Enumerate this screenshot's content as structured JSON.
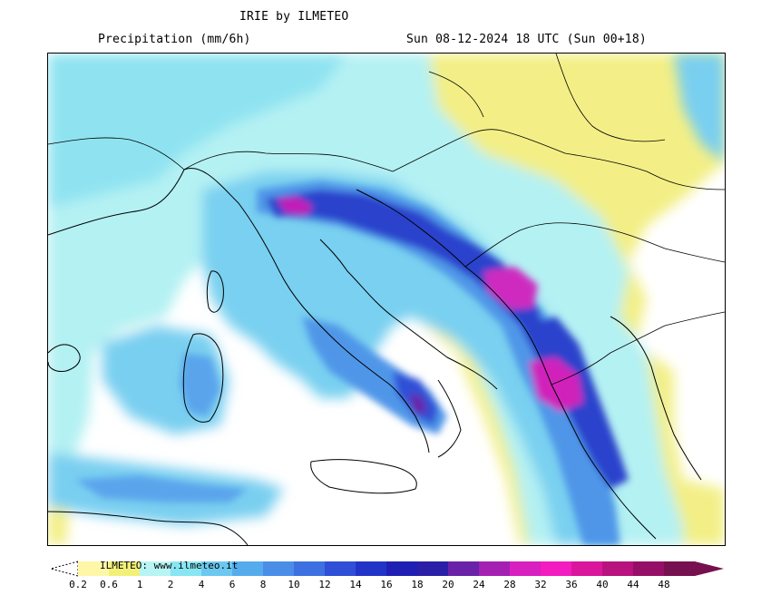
{
  "header": {
    "title": "IRIE by ILMETEO",
    "subtitle": "Precipitation (mm/6h)",
    "valid_time": "Sun 08-12-2024 18 UTC (Sun 00+18)"
  },
  "legend": {
    "credit": "ILMETEO: www.ilmeteo.it",
    "levels": [
      "0.2",
      "0.6",
      "1",
      "2",
      "4",
      "6",
      "8",
      "10",
      "12",
      "14",
      "16",
      "18",
      "20",
      "24",
      "28",
      "32",
      "36",
      "40",
      "44",
      "48"
    ],
    "colors": [
      "#fff7a8",
      "#f3f07a",
      "#b8f4f4",
      "#87e6f2",
      "#6cc8ef",
      "#55acec",
      "#4a8ee8",
      "#3d70e0",
      "#2f4fd6",
      "#2234c8",
      "#1f20b3",
      "#2a1fa6",
      "#6a22a8",
      "#a420b2",
      "#d81fbf",
      "#f21cc0",
      "#d9169c",
      "#b8127e",
      "#960f66",
      "#76104f"
    ],
    "colors_meaning": "palette from dry/low precipitation (yellow) through blue to heavy precipitation (magenta/maroon)"
  },
  "map": {
    "region": "Italy, Adriatic and Balkans",
    "field": "6-hour accumulated precipitation"
  }
}
